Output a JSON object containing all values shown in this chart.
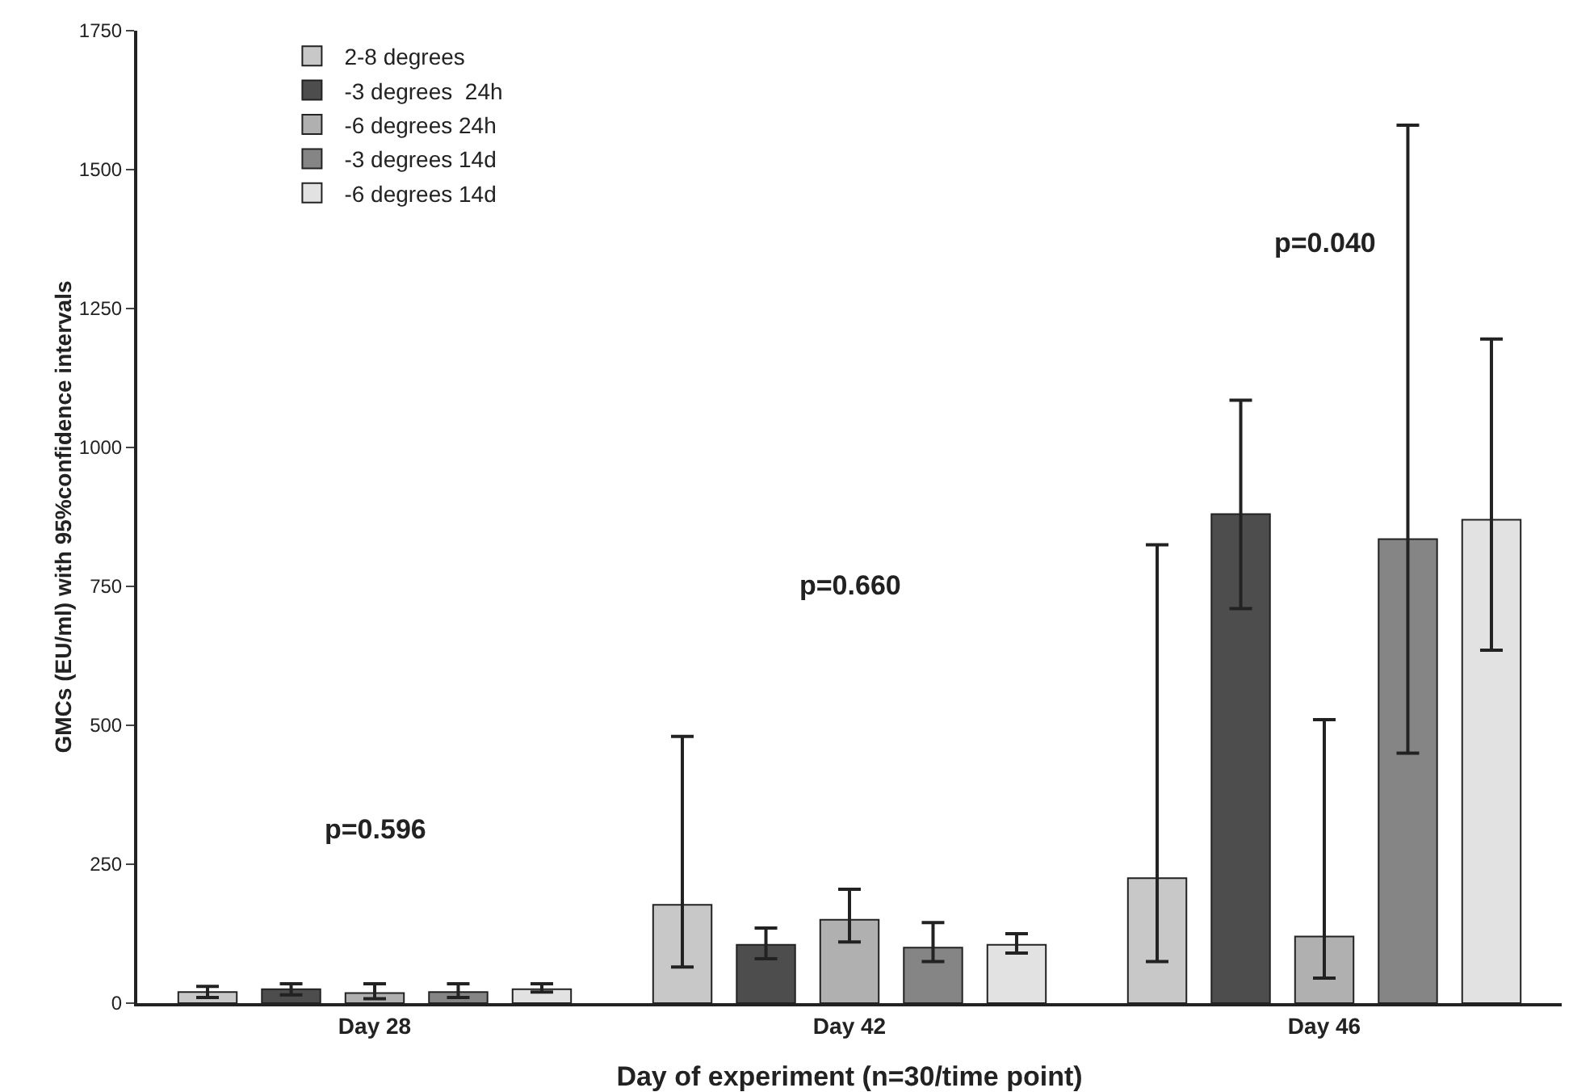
{
  "chart_data": {
    "type": "bar",
    "xlabel": "Day of experiment (n=30/time point)",
    "ylabel": "GMCs (EU/ml) with 95%confidence intervals",
    "categories": [
      "Day 28",
      "Day 42",
      "Day 46"
    ],
    "series": [
      {
        "name": "2-8 degrees",
        "color": "#c8c8c8",
        "values": [
          20,
          177,
          225
        ],
        "errors": [
          [
            10,
            30
          ],
          [
            65,
            480
          ],
          [
            75,
            825
          ]
        ]
      },
      {
        "name": "-3 degrees  24h",
        "color": "#4d4d4d",
        "values": [
          25,
          105,
          880
        ],
        "errors": [
          [
            15,
            35
          ],
          [
            80,
            135
          ],
          [
            710,
            1085
          ]
        ]
      },
      {
        "name": "-6 degrees 24h",
        "color": "#b0b0b0",
        "values": [
          18,
          150,
          120
        ],
        "errors": [
          [
            8,
            35
          ],
          [
            110,
            205
          ],
          [
            45,
            510
          ]
        ]
      },
      {
        "name": "-3 degrees 14d",
        "color": "#858585",
        "values": [
          20,
          100,
          835
        ],
        "errors": [
          [
            10,
            35
          ],
          [
            75,
            145
          ],
          [
            450,
            1580
          ]
        ]
      },
      {
        "name": "-6 degrees 14d",
        "color": "#e2e2e2",
        "values": [
          25,
          105,
          870
        ],
        "errors": [
          [
            20,
            35
          ],
          [
            90,
            125
          ],
          [
            635,
            1195
          ]
        ]
      }
    ],
    "ylim": [
      0,
      1750
    ],
    "yticks": [
      0,
      250,
      500,
      750,
      1000,
      1250,
      1500,
      1750
    ],
    "grid": false,
    "legend": "top left",
    "annotations": [
      "p=0.596",
      "p=0.660",
      "p=0.040"
    ]
  }
}
